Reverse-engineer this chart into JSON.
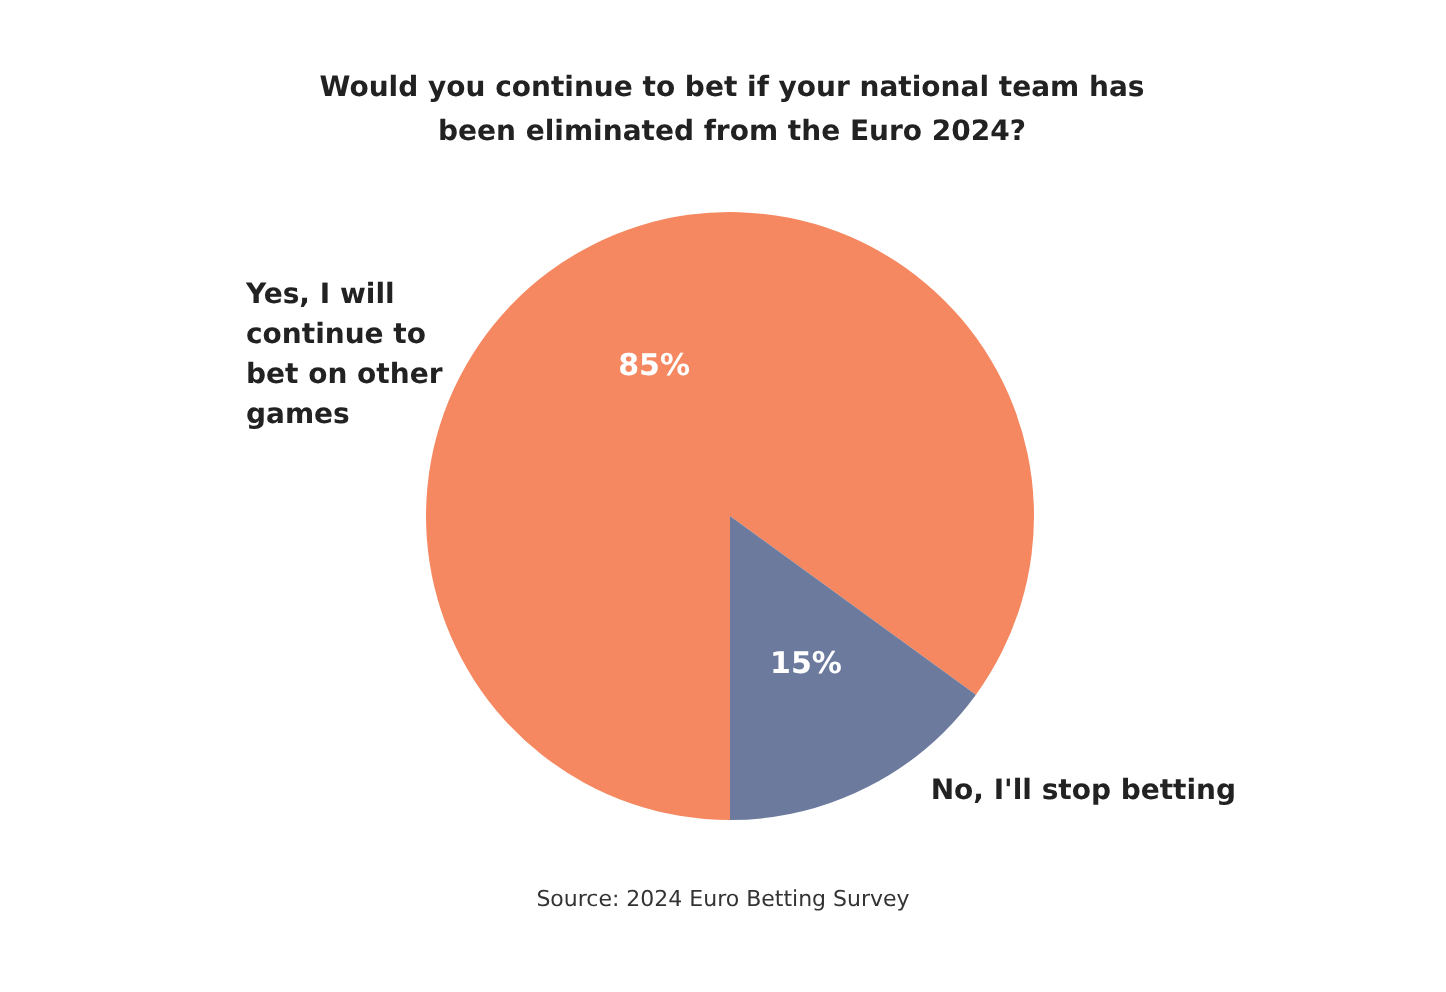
{
  "chart_data": {
    "type": "pie",
    "title": "Would you continue to bet if your national team has been eliminated from the Euro 2024?",
    "categories": [
      "Yes, I will continue to bet on other games",
      "No, I'll stop betting"
    ],
    "values": [
      85,
      15
    ],
    "colors": [
      "#f58860",
      "#6b7a9d"
    ],
    "value_labels": [
      "85%",
      "15%"
    ],
    "legend": false,
    "annotations": [
      "Source: 2024 Euro Betting Survey"
    ]
  }
}
